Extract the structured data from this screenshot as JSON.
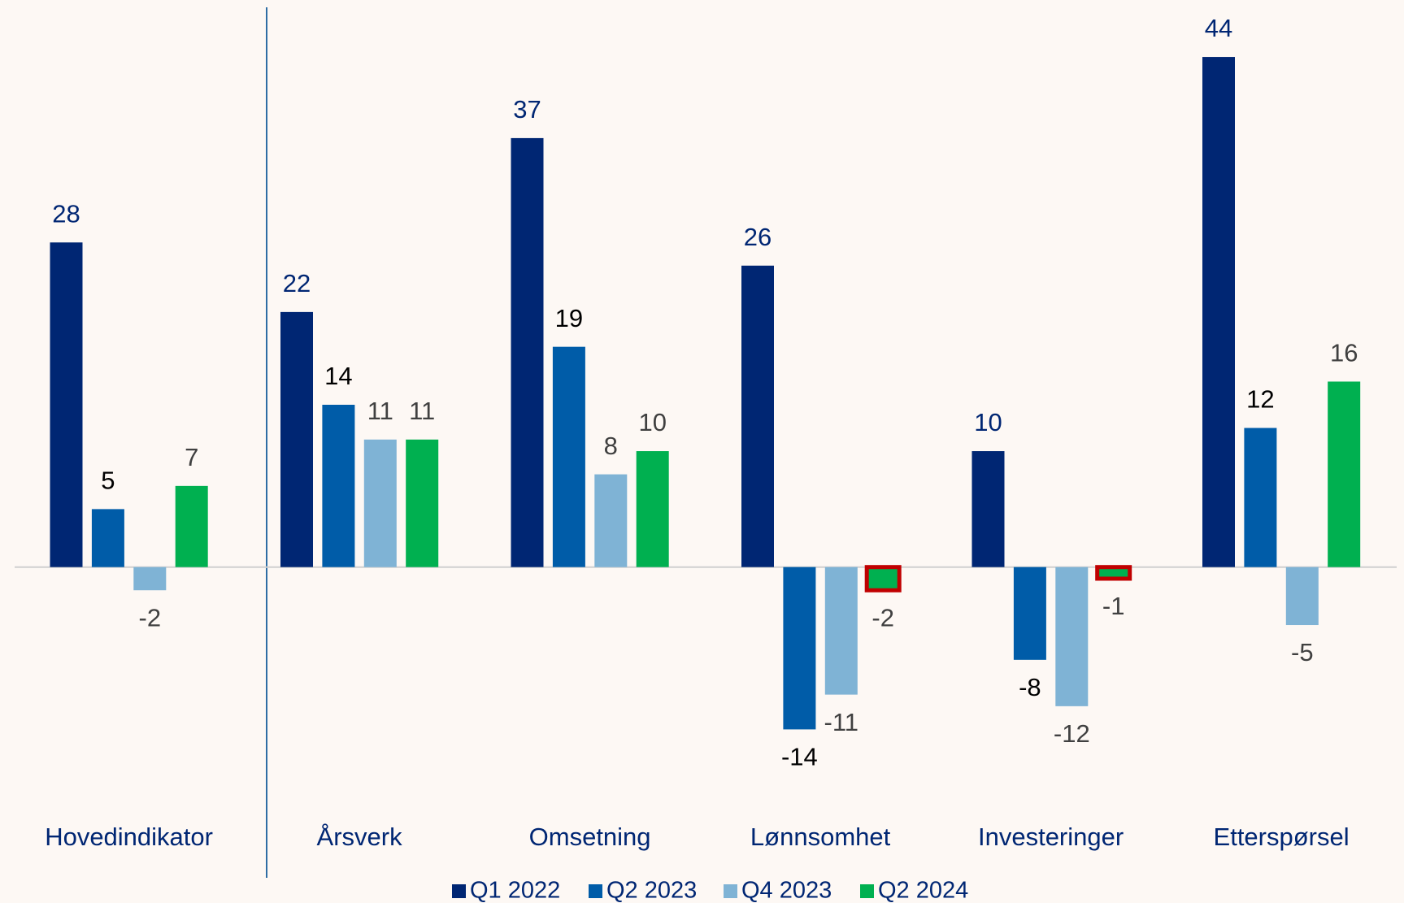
{
  "chart_data": {
    "type": "bar",
    "categories": [
      "Hovedindikator",
      "Årsverk",
      "Omsetning",
      "Lønnsomhet",
      "Investeringer",
      "Etterspørsel"
    ],
    "series": [
      {
        "name": "Q1 2022",
        "color": "#002673",
        "label_color": "#002673",
        "values": [
          28,
          22,
          37,
          26,
          10,
          44
        ]
      },
      {
        "name": "Q2 2023",
        "color": "#005ca8",
        "label_color": "#000000",
        "values": [
          5,
          14,
          19,
          -14,
          -8,
          12
        ]
      },
      {
        "name": "Q4 2023",
        "color": "#7fb3d5",
        "label_color": "#404040",
        "values": [
          -2,
          11,
          8,
          -11,
          -12,
          -5
        ]
      },
      {
        "name": "Q2 2024",
        "color": "#00b050",
        "label_color": "#404040",
        "values": [
          7,
          11,
          10,
          -2,
          -1,
          16
        ]
      }
    ],
    "ylim": [
      -20,
      48
    ],
    "highlight": [
      {
        "series": 3,
        "category": 3
      },
      {
        "series": 3,
        "category": 4
      }
    ],
    "highlight_color": "#c00000"
  }
}
